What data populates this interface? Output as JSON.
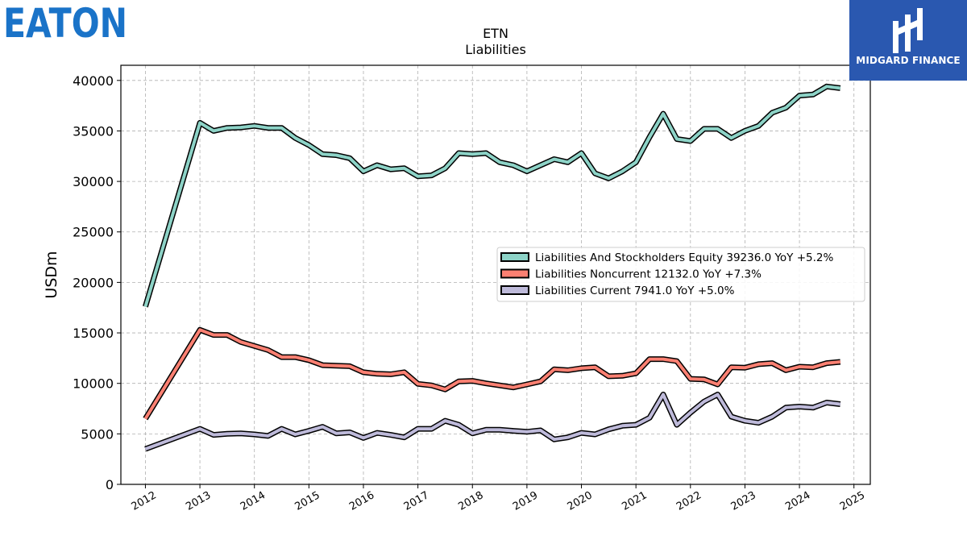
{
  "brand": {
    "left_logo_text": "EATON",
    "left_logo_color": "#1a73c8",
    "right_logo_text": "MIDGARD FINANCE",
    "right_logo_bg": "#2a58b0"
  },
  "chart_data": {
    "type": "line",
    "title": "ETN",
    "subtitle": "Liabilities",
    "xlabel": "",
    "ylabel": "USDm",
    "xlim": [
      2011.55,
      2025.3
    ],
    "ylim": [
      0,
      41500
    ],
    "x_ticks": [
      "2012",
      "2013",
      "2014",
      "2015",
      "2016",
      "2017",
      "2018",
      "2019",
      "2020",
      "2021",
      "2022",
      "2023",
      "2024",
      "2025"
    ],
    "y_ticks": [
      "0",
      "5000",
      "10000",
      "15000",
      "20000",
      "25000",
      "30000",
      "35000",
      "40000"
    ],
    "grid": true,
    "legend_position": "center-right",
    "x": [
      2012.0,
      2013.0,
      2013.25,
      2013.5,
      2013.75,
      2014.0,
      2014.25,
      2014.5,
      2014.75,
      2015.0,
      2015.25,
      2015.5,
      2015.75,
      2016.0,
      2016.25,
      2016.5,
      2016.75,
      2017.0,
      2017.25,
      2017.5,
      2017.75,
      2018.0,
      2018.25,
      2018.5,
      2018.75,
      2019.0,
      2019.25,
      2019.5,
      2019.75,
      2020.0,
      2020.25,
      2020.5,
      2020.75,
      2021.0,
      2021.25,
      2021.5,
      2021.75,
      2022.0,
      2022.25,
      2022.5,
      2022.75,
      2023.0,
      2023.25,
      2023.5,
      2023.75,
      2024.0,
      2024.25,
      2024.5,
      2024.75
    ],
    "series": [
      {
        "name": "Liabilities And Stockholders Equity",
        "legend": "Liabilities And Stockholders Equity  39236.0 YoY +5.2%",
        "color": "#8dd3c7",
        "values": [
          17600,
          35800,
          35000,
          35300,
          35350,
          35500,
          35300,
          35300,
          34300,
          33600,
          32700,
          32600,
          32300,
          31000,
          31600,
          31200,
          31300,
          30500,
          30600,
          31300,
          32800,
          32700,
          32800,
          31900,
          31600,
          31000,
          31600,
          32200,
          31900,
          32800,
          30800,
          30300,
          31000,
          31900,
          34400,
          36700,
          34200,
          34000,
          35200,
          35200,
          34300,
          35000,
          35500,
          36800,
          37300,
          38500,
          38600,
          39400,
          39236
        ]
      },
      {
        "name": "Liabilities Noncurrent",
        "legend": "Liabilities Noncurrent  12132.0 YoY +7.3%",
        "color": "#fb8072",
        "values": [
          6500,
          15300,
          14800,
          14800,
          14100,
          13700,
          13300,
          12600,
          12600,
          12300,
          11800,
          11750,
          11700,
          11100,
          10950,
          10900,
          11100,
          9950,
          9800,
          9400,
          10200,
          10250,
          10000,
          9800,
          9600,
          9900,
          10200,
          11400,
          11300,
          11500,
          11600,
          10700,
          10750,
          11000,
          12400,
          12400,
          12200,
          10450,
          10400,
          9900,
          11600,
          11550,
          11900,
          12000,
          11300,
          11650,
          11600,
          12000,
          12132
        ]
      },
      {
        "name": "Liabilities Current",
        "legend": "Liabilities Current  7941.0 YoY +5.0%",
        "color": "#bebada",
        "values": [
          3500,
          5500,
          4900,
          5000,
          5050,
          4950,
          4800,
          5500,
          4950,
          5300,
          5700,
          5050,
          5150,
          4600,
          5100,
          4900,
          4650,
          5500,
          5500,
          6300,
          5900,
          5050,
          5400,
          5400,
          5300,
          5200,
          5350,
          4450,
          4650,
          5100,
          4950,
          5450,
          5800,
          5900,
          6600,
          8900,
          5900,
          7100,
          8200,
          8900,
          6700,
          6300,
          6100,
          6700,
          7600,
          7700,
          7600,
          8100,
          7941
        ]
      }
    ]
  }
}
